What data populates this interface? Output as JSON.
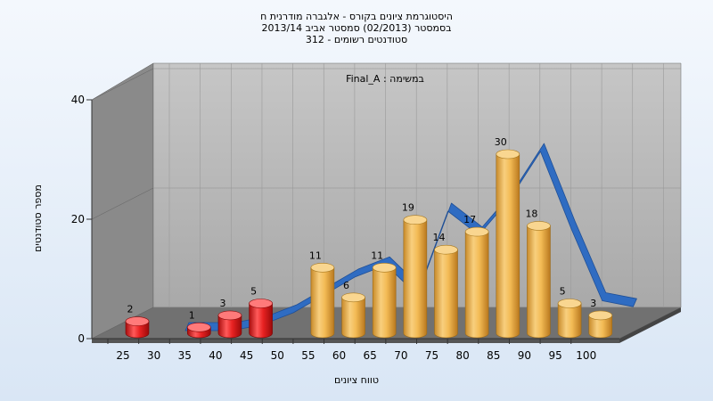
{
  "chart_data": {
    "type": "bar",
    "title_lines": [
      "היסטוגרמת ציונים בקורס - אלגברה מודרנית ח",
      "בסמסטר  (02/2013)  סמסטר אביב 2013/14",
      "סטודנטים רשומים - 312"
    ],
    "subtitle": "Final_A : במשימה",
    "xlabel": "טווח ציונים",
    "ylabel": "מספר סטודנטים",
    "x_ticks": [
      25,
      30,
      35,
      40,
      45,
      50,
      55,
      60,
      65,
      70,
      75,
      80,
      85,
      90,
      95,
      100
    ],
    "y_ticks": [
      0,
      20,
      40
    ],
    "ylim": [
      0,
      40
    ],
    "bars": [
      {
        "x": 25,
        "value": 2,
        "group": "fail"
      },
      {
        "x": 35,
        "value": 1,
        "group": "fail"
      },
      {
        "x": 40,
        "value": 3,
        "group": "fail"
      },
      {
        "x": 45,
        "value": 5,
        "group": "fail"
      },
      {
        "x": 55,
        "value": 11,
        "group": "pass"
      },
      {
        "x": 60,
        "value": 6,
        "group": "pass"
      },
      {
        "x": 65,
        "value": 11,
        "group": "pass"
      },
      {
        "x": 70,
        "value": 19,
        "group": "pass"
      },
      {
        "x": 75,
        "value": 14,
        "group": "pass"
      },
      {
        "x": 80,
        "value": 17,
        "group": "pass"
      },
      {
        "x": 85,
        "value": 30,
        "group": "pass"
      },
      {
        "x": 90,
        "value": 18,
        "group": "pass"
      },
      {
        "x": 95,
        "value": 5,
        "group": "pass"
      },
      {
        "x": 100,
        "value": 3,
        "group": "pass"
      }
    ],
    "trend_line": {
      "x": [
        32.5,
        40,
        45,
        50,
        55,
        60,
        65,
        70,
        75,
        80,
        85,
        90,
        95,
        100,
        105
      ],
      "y": [
        0,
        0,
        1,
        3,
        6,
        9,
        11,
        6,
        20,
        16,
        22,
        30,
        17,
        5,
        4
      ]
    },
    "grid": true,
    "colors": {
      "fail": "#e01818",
      "pass": "#f0b040",
      "trend": "#2f6cc2",
      "wall": "#b4b4b4",
      "side_wall": "#888888",
      "floor": "#6e6e6e"
    }
  }
}
